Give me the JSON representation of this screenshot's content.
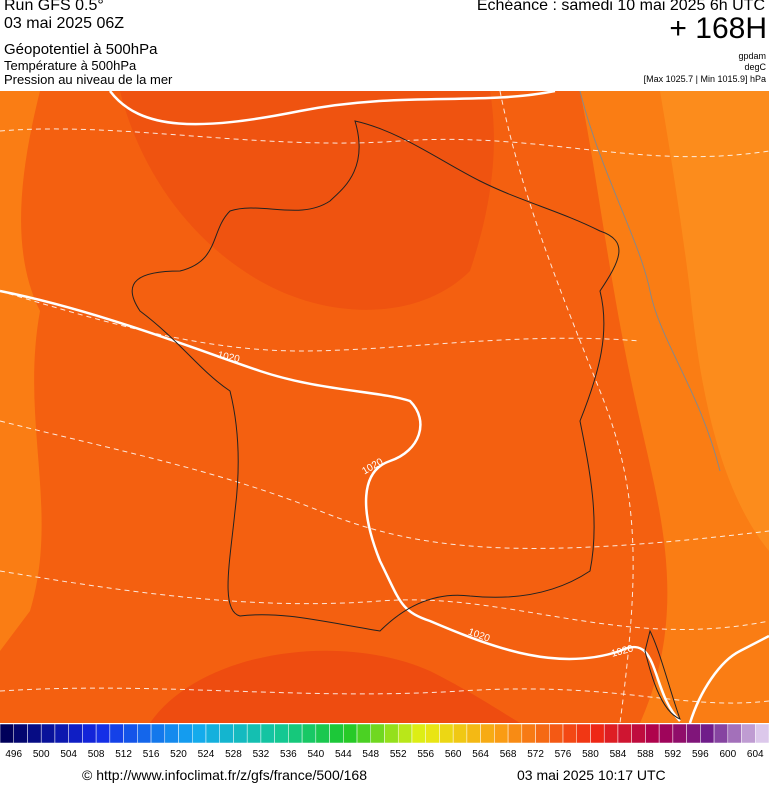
{
  "header": {
    "run": "Run GFS 0.5°",
    "date": "03 mai 2025 06Z",
    "echeance": "Echéance : samedi 10 mai 2025 6h UTC",
    "lead": "+ 168H",
    "layer1": "Géopotentiel à 500hPa",
    "layer2": "Température à 500hPa",
    "layer3": "Pression au niveau de la mer",
    "unit1": "gpdam",
    "unit2": "degC",
    "unit3": "[Max 1025.7 | Min 1015.9] hPa"
  },
  "map": {
    "isobar_labels": [
      "1020",
      "1020",
      "1020",
      "1020"
    ]
  },
  "scale": {
    "labels": [
      496,
      500,
      504,
      508,
      512,
      516,
      520,
      524,
      528,
      532,
      536,
      540,
      544,
      548,
      552,
      556,
      560,
      564,
      568,
      572,
      576,
      580,
      584,
      588,
      592,
      596,
      600,
      604
    ]
  },
  "footer": {
    "url": "© http://www.infoclimat.fr/z/gfs/france/500/168",
    "timestamp": "03 mai 2025 10:17 UTC"
  }
}
